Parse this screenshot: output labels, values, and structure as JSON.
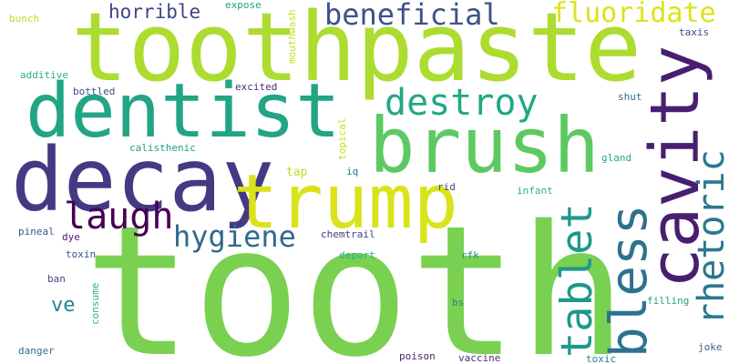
{
  "cloud": {
    "words": [
      {
        "text": "tooth",
        "color": "#7ad151"
      },
      {
        "text": "toothpaste",
        "color": "#addc30"
      },
      {
        "text": "dentist",
        "color": "#21a585"
      },
      {
        "text": "decay",
        "color": "#443a83"
      },
      {
        "text": "brush",
        "color": "#5ec962"
      },
      {
        "text": "trump",
        "color": "#dae319"
      },
      {
        "text": "cavity",
        "color": "#481f70"
      },
      {
        "text": "bless",
        "color": "#2c728e"
      },
      {
        "text": "rhetoric",
        "color": "#2a788e"
      },
      {
        "text": "tablet",
        "color": "#1f988b"
      },
      {
        "text": "destroy",
        "color": "#22a884"
      },
      {
        "text": "beneficial",
        "color": "#3b528b"
      },
      {
        "text": "fluoridate",
        "color": "#dde318"
      },
      {
        "text": "laugh",
        "color": "#440154"
      },
      {
        "text": "hygiene",
        "color": "#31688e"
      },
      {
        "text": "horrible",
        "color": "#414487"
      },
      {
        "text": "ve",
        "color": "#25858e"
      },
      {
        "text": "expose",
        "color": "#1fa088"
      },
      {
        "text": "mouthwash",
        "color": "#c2df23"
      },
      {
        "text": "bunch",
        "color": "#bddf26"
      },
      {
        "text": "taxis",
        "color": "#3e4989"
      },
      {
        "text": "additive",
        "color": "#2ab07f"
      },
      {
        "text": "bottled",
        "color": "#3b528b"
      },
      {
        "text": "excited",
        "color": "#472d7b"
      },
      {
        "text": "shut",
        "color": "#31688e"
      },
      {
        "text": "topical",
        "color": "#c8e020"
      },
      {
        "text": "calisthenic",
        "color": "#1f9e89"
      },
      {
        "text": "tap",
        "color": "#b5de2b"
      },
      {
        "text": "iq",
        "color": "#2a768e"
      },
      {
        "text": "gland",
        "color": "#22a785"
      },
      {
        "text": "rid",
        "color": "#3e4989"
      },
      {
        "text": "infant",
        "color": "#2eb37c"
      },
      {
        "text": "pineal",
        "color": "#39568c"
      },
      {
        "text": "dye",
        "color": "#481b6d"
      },
      {
        "text": "chemtrail",
        "color": "#433e85"
      },
      {
        "text": "toxin",
        "color": "#3b528b"
      },
      {
        "text": "deport",
        "color": "#26ad81"
      },
      {
        "text": "rfk",
        "color": "#21918c"
      },
      {
        "text": "ban",
        "color": "#414487"
      },
      {
        "text": "consume",
        "color": "#2fb47c"
      },
      {
        "text": "filling",
        "color": "#20a386"
      },
      {
        "text": "bs",
        "color": "#25838e"
      },
      {
        "text": "danger",
        "color": "#2d708e"
      },
      {
        "text": "poison",
        "color": "#482475"
      },
      {
        "text": "vaccine",
        "color": "#46337f"
      },
      {
        "text": "toxic",
        "color": "#287d8e"
      },
      {
        "text": "joke",
        "color": "#33638d"
      }
    ]
  }
}
